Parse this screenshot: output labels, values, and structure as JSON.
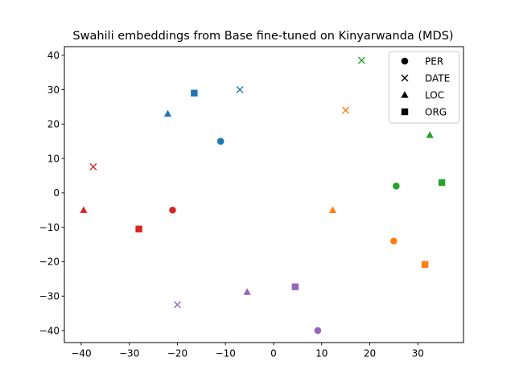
{
  "chart_data": {
    "type": "scatter",
    "title": "Swahili embeddings from Base fine-tuned on Kinyarwanda (MDS)",
    "xlabel": "",
    "ylabel": "",
    "xlim": [
      -43.5,
      39.5
    ],
    "ylim": [
      -43.5,
      42.5
    ],
    "x_ticks": [
      -40,
      -30,
      -20,
      -10,
      0,
      10,
      20,
      30
    ],
    "y_ticks": [
      -40,
      -30,
      -20,
      -10,
      0,
      10,
      20,
      30,
      40
    ],
    "grid": false,
    "legend_position": "top-right",
    "legend": [
      {
        "label": "PER",
        "marker": "circle"
      },
      {
        "label": "DATE",
        "marker": "x"
      },
      {
        "label": "LOC",
        "marker": "triangle"
      },
      {
        "label": "ORG",
        "marker": "square"
      }
    ],
    "colors": {
      "blue": "#1f77b4",
      "orange": "#ff7f0e",
      "green": "#2ca02c",
      "red": "#d62728",
      "purple": "#9467bd"
    },
    "points": [
      {
        "x": -11,
        "y": 15,
        "marker": "circle",
        "color": "blue"
      },
      {
        "x": -7,
        "y": 30,
        "marker": "x",
        "color": "blue"
      },
      {
        "x": -22,
        "y": 23,
        "marker": "triangle",
        "color": "blue"
      },
      {
        "x": -16.5,
        "y": 29,
        "marker": "square",
        "color": "blue"
      },
      {
        "x": 25,
        "y": -14,
        "marker": "circle",
        "color": "orange"
      },
      {
        "x": 15,
        "y": 24,
        "marker": "x",
        "color": "orange"
      },
      {
        "x": 12.3,
        "y": -5,
        "marker": "triangle",
        "color": "orange"
      },
      {
        "x": 31.5,
        "y": -20.8,
        "marker": "square",
        "color": "orange"
      },
      {
        "x": 25.5,
        "y": 2,
        "marker": "circle",
        "color": "green"
      },
      {
        "x": 18.3,
        "y": 38.5,
        "marker": "x",
        "color": "green"
      },
      {
        "x": 32.5,
        "y": 16.8,
        "marker": "triangle",
        "color": "green"
      },
      {
        "x": 35,
        "y": 3,
        "marker": "square",
        "color": "green"
      },
      {
        "x": -21,
        "y": -5,
        "marker": "circle",
        "color": "red"
      },
      {
        "x": -37.5,
        "y": 7.6,
        "marker": "x",
        "color": "red"
      },
      {
        "x": -39.5,
        "y": -5,
        "marker": "triangle",
        "color": "red"
      },
      {
        "x": -28,
        "y": -10.5,
        "marker": "square",
        "color": "red"
      },
      {
        "x": 9.2,
        "y": -40,
        "marker": "circle",
        "color": "purple"
      },
      {
        "x": -20,
        "y": -32.5,
        "marker": "x",
        "color": "purple"
      },
      {
        "x": -5.5,
        "y": -28.8,
        "marker": "triangle",
        "color": "purple"
      },
      {
        "x": 4.5,
        "y": -27.3,
        "marker": "square",
        "color": "purple"
      }
    ]
  }
}
